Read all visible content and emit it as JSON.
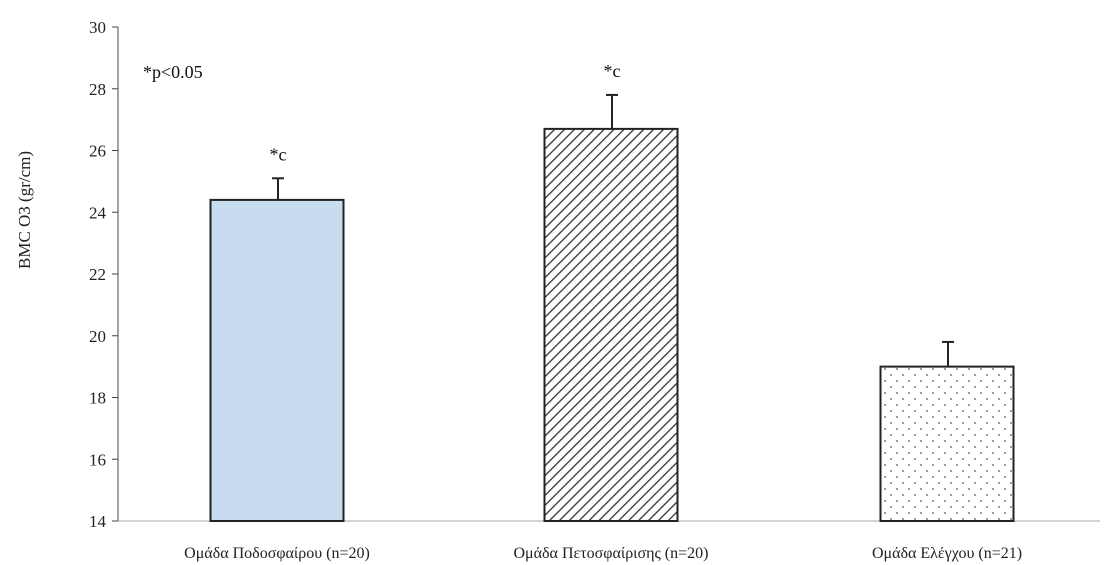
{
  "chart_data": {
    "type": "bar",
    "ylabel": "BMC O3 (gr/cm)",
    "ylim": [
      14,
      30
    ],
    "yticks": [
      14,
      16,
      18,
      20,
      22,
      24,
      26,
      28,
      30
    ],
    "grid": false,
    "categories": [
      "Ομάδα Ποδοσφαίρου (n=20)",
      "Ομάδα Πετοσφαίρισης (n=20)",
      "Ομάδα Ελέγχου (n=21)"
    ],
    "values": [
      24.4,
      26.7,
      19.0
    ],
    "errors": [
      0.7,
      1.1,
      0.8
    ],
    "bar_labels": [
      "*c",
      "*c",
      ""
    ],
    "bar_fills": [
      "solid-light-blue",
      "diagonal-hatch",
      "dots"
    ],
    "colors": {
      "bar1": "#c8dcf0",
      "outline": "#222222"
    },
    "annotation": "*p<0.05"
  }
}
